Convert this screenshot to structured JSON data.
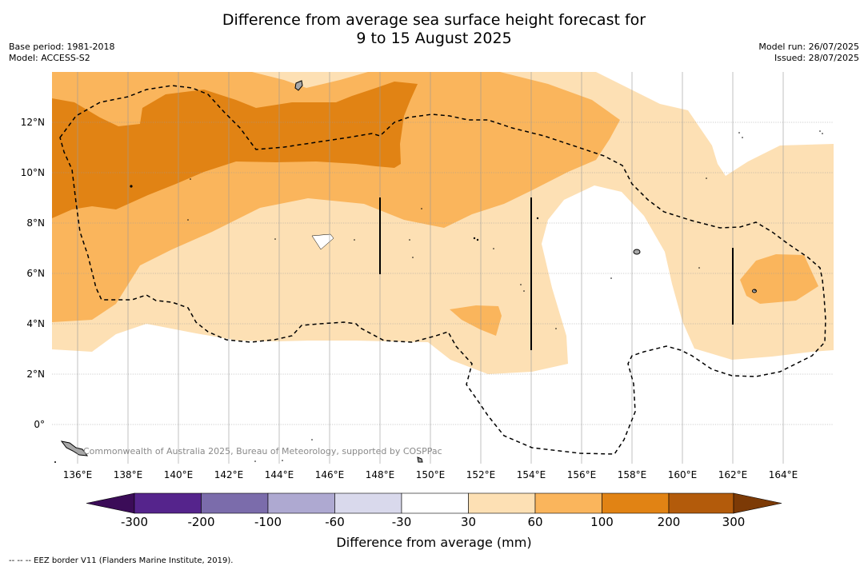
{
  "title": {
    "line1": "Difference from average sea surface height forecast for",
    "line2": "9 to 15 August 2025"
  },
  "meta": {
    "base_period": "Base period: 1981-2018",
    "model": "Model: ACCESS-S2",
    "model_run": "Model run: 26/07/2025",
    "issued": "Issued: 28/07/2025"
  },
  "map": {
    "lat_labels": [
      "12°N",
      "10°N",
      "8°N",
      "6°N",
      "4°N",
      "2°N",
      "0°"
    ],
    "lon_labels": [
      "136°E",
      "138°E",
      "140°E",
      "142°E",
      "144°E",
      "146°E",
      "148°E",
      "150°E",
      "152°E",
      "154°E",
      "156°E",
      "158°E",
      "160°E",
      "162°E",
      "164°E"
    ],
    "lon_range": [
      135,
      166
    ],
    "lat_range": [
      -1.5,
      14
    ],
    "credit": "Commonwealth of Australia 2025, Bureau of Meteorology, supported by COSPPac",
    "colors": {
      "band_30_60": "#fde0b4",
      "band_60_100": "#fab55c",
      "band_100_200": "#e18314",
      "land": "#a8a8a8",
      "grid": "#999999"
    }
  },
  "colorbar": {
    "title": "Difference from average (mm)",
    "labels": [
      "-300",
      "-200",
      "-100",
      "-60",
      "-30",
      "30",
      "60",
      "100",
      "200",
      "300"
    ],
    "colors": [
      "#3b0c58",
      "#55248c",
      "#7b6cab",
      "#aea9d1",
      "#d9d9ec",
      "#ffffff",
      "#fde0b4",
      "#fab55c",
      "#e18314",
      "#b35b0b",
      "#7c3a06"
    ]
  },
  "footnote": "--  --  -- EEZ border V11 (Flanders Marine Institute, 2019)."
}
